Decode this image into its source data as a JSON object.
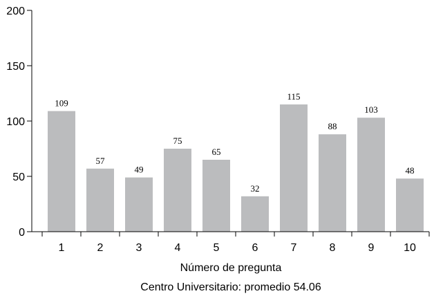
{
  "chart_data": {
    "type": "bar",
    "categories": [
      "1",
      "2",
      "3",
      "4",
      "5",
      "6",
      "7",
      "8",
      "9",
      "10"
    ],
    "values": [
      109,
      57,
      49,
      75,
      65,
      32,
      115,
      88,
      103,
      48
    ],
    "data_labels": [
      "109",
      "57",
      "49",
      "75",
      "65",
      "32",
      "115",
      "88",
      "103",
      "48"
    ],
    "xlabel": "Número de pregunta",
    "caption": "Centro Universitario: promedio 54.06",
    "ylim": [
      0,
      200
    ],
    "yticks": [
      "0",
      "50",
      "100",
      "150",
      "200"
    ],
    "grid": false,
    "bar_color": "#bbbcbe"
  }
}
